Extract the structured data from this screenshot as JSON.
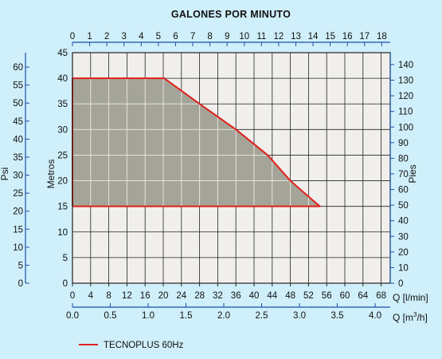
{
  "colors": {
    "background": "#cfeffa",
    "plot_area": "#f0efec",
    "grid": "#222222",
    "fill": "#a5a498",
    "inner_grid": "#e4e3df",
    "curve": "#e0201c",
    "axis": "#1a4fa8",
    "text": "#111111"
  },
  "chart_data": {
    "type": "area",
    "top_axis_title": "GALONES POR MINUTO",
    "left_inner_label": "Metros",
    "left_outer_label": "Psi",
    "right_label": "Pies",
    "bottom_primary_label": "Q [l/min]",
    "bottom_secondary_label": "Q [m³/h]",
    "bottom_secondary_base": "Q [m",
    "bottom_secondary_sup": "3",
    "bottom_secondary_tail": "/h]",
    "x_lmin_range": [
      0,
      70
    ],
    "x_lmin_ticks": [
      "0",
      "4",
      "8",
      "12",
      "16",
      "20",
      "24",
      "28",
      "32",
      "36",
      "40",
      "44",
      "48",
      "52",
      "56",
      "60",
      "64",
      "68"
    ],
    "x_m3h_ticks": [
      "0.0",
      "0.5",
      "1.0",
      "1.5",
      "2.0",
      "2.5",
      "3.0",
      "3.5",
      "4.0"
    ],
    "x_gpm_ticks": [
      "0",
      "1",
      "2",
      "3",
      "4",
      "5",
      "6",
      "7",
      "8",
      "9",
      "10",
      "11",
      "12",
      "13",
      "14",
      "15",
      "16",
      "17",
      "18"
    ],
    "y_metros_range": [
      0,
      45
    ],
    "y_metros_ticks": [
      "0",
      "5",
      "10",
      "15",
      "20",
      "25",
      "30",
      "35",
      "40",
      "45"
    ],
    "y_psi_ticks": [
      "0",
      "5",
      "10",
      "15",
      "20",
      "25",
      "30",
      "35",
      "40",
      "45",
      "50",
      "55",
      "60"
    ],
    "y_pies_ticks": [
      "0",
      "10",
      "20",
      "30",
      "40",
      "50",
      "60",
      "70",
      "80",
      "90",
      "100",
      "110",
      "120",
      "130",
      "140"
    ],
    "grid": true,
    "series": [
      {
        "name": "TECNOPLUS 60Hz",
        "x_lmin": [
          0,
          0,
          20.2,
          28,
          36,
          43,
          48,
          54.5,
          0
        ],
        "y_metros": [
          15,
          40,
          40,
          35,
          30,
          25,
          20,
          15,
          15
        ]
      }
    ],
    "legend": {
      "position": "bottom-left"
    }
  }
}
